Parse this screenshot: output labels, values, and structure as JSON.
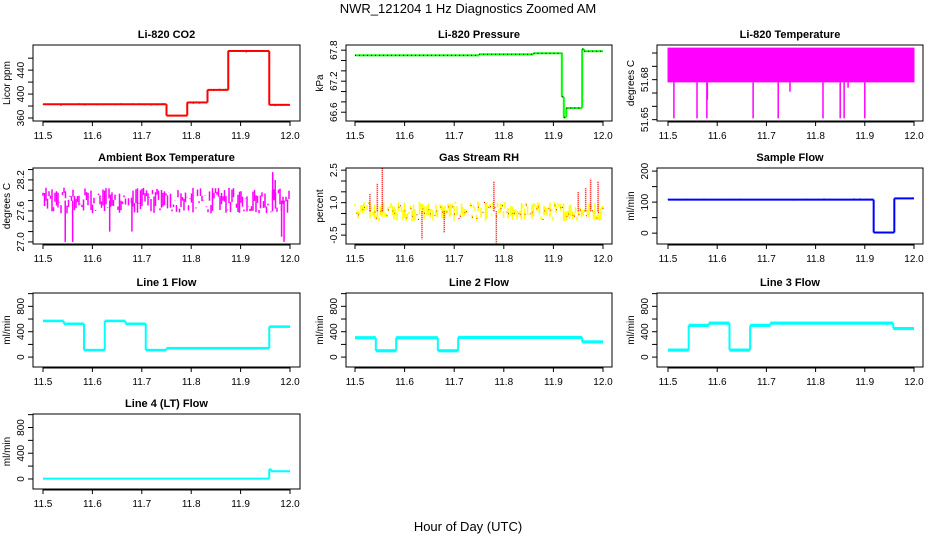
{
  "figure": {
    "title": "NWR_121204  1 Hz Diagnostics Zoomed AM",
    "xlabel": "Hour of Day (UTC)"
  },
  "chart_data": [
    {
      "type": "line",
      "title": "Li-820 CO2",
      "ylabel": "Licor ppm",
      "color": "#ff0000",
      "xlim": [
        11.5,
        12.0
      ],
      "xticks": [
        11.5,
        11.6,
        11.7,
        11.8,
        11.9,
        12.0
      ],
      "ylim": [
        355,
        482
      ],
      "yticks": [
        360,
        380,
        400,
        420,
        440,
        460
      ],
      "ytick_labels": [
        360,
        400,
        440
      ],
      "segments": [
        [
          11.5,
          11.75,
          383
        ],
        [
          11.75,
          11.792,
          364
        ],
        [
          11.792,
          11.833,
          386
        ],
        [
          11.833,
          11.875,
          407
        ],
        [
          11.875,
          11.958,
          472
        ],
        [
          11.958,
          12.0,
          382
        ]
      ],
      "noise": 1.5,
      "spread": 2
    },
    {
      "type": "line",
      "title": "Li-820 Pressure",
      "ylabel": "kPa",
      "color": "#00ff00",
      "marker_color": "#000000",
      "xlim": [
        11.5,
        12.0
      ],
      "xticks": [
        11.5,
        11.6,
        11.7,
        11.8,
        11.9,
        12.0
      ],
      "ylim": [
        66.43,
        67.9
      ],
      "yticks": [
        66.6,
        66.8,
        67.0,
        67.2,
        67.4,
        67.6,
        67.8
      ],
      "ytick_labels": [
        66.6,
        67.2,
        67.8
      ],
      "segments": [
        [
          11.5,
          11.75,
          67.7
        ],
        [
          11.75,
          11.86,
          67.72
        ],
        [
          11.86,
          11.917,
          67.74
        ],
        [
          11.917,
          11.921,
          66.9
        ],
        [
          11.921,
          11.926,
          66.5
        ],
        [
          11.926,
          11.958,
          66.68
        ],
        [
          11.958,
          11.962,
          67.82
        ],
        [
          11.962,
          12.0,
          67.78
        ]
      ],
      "noise": 0.01,
      "spread": 0.02
    },
    {
      "type": "line",
      "title": "Li-820 Temperature",
      "ylabel": "degrees C",
      "color": "#ff00ff",
      "xlim": [
        11.5,
        12.0
      ],
      "xticks": [
        11.5,
        11.6,
        11.7,
        11.8,
        11.9,
        12.0
      ],
      "ylim": [
        51.649,
        51.706
      ],
      "yticks": [
        51.65,
        51.66,
        51.67,
        51.68,
        51.69,
        51.7
      ],
      "ytick_labels": [
        51.65,
        51.68
      ],
      "band": [
        51.678,
        51.704
      ],
      "spikes": [
        [
          11.512,
          51.651
        ],
        [
          11.559,
          51.651
        ],
        [
          11.579,
          51.651
        ],
        [
          11.58,
          51.665
        ],
        [
          11.673,
          51.651
        ],
        [
          11.724,
          51.651
        ],
        [
          11.748,
          51.671
        ],
        [
          11.815,
          51.651
        ],
        [
          11.85,
          51.651
        ],
        [
          11.858,
          51.651
        ],
        [
          11.866,
          51.674
        ],
        [
          11.9,
          51.651
        ]
      ]
    },
    {
      "type": "line",
      "title": "Ambient Box Temperature",
      "ylabel": "degrees C",
      "color": "#ff00ff",
      "xlim": [
        11.5,
        12.0
      ],
      "xticks": [
        11.5,
        11.6,
        11.7,
        11.8,
        11.9,
        12.0
      ],
      "ylim": [
        26.96,
        28.43
      ],
      "yticks": [
        27.0,
        27.2,
        27.4,
        27.6,
        27.8,
        28.0,
        28.2,
        28.4
      ],
      "ytick_labels": [
        27.0,
        27.6,
        28.2
      ],
      "center": 27.8,
      "noise": 0.25,
      "spikes": [
        [
          11.545,
          27.0
        ],
        [
          11.56,
          27.0
        ],
        [
          11.635,
          27.2
        ],
        [
          11.68,
          27.2
        ],
        [
          11.965,
          28.35
        ],
        [
          11.97,
          28.2
        ],
        [
          11.988,
          27.0
        ],
        [
          11.983,
          27.1
        ]
      ]
    },
    {
      "type": "line",
      "title": "Gas Stream RH",
      "ylabel": "percent",
      "color": "#ffff00",
      "marker_color": "#ff0000",
      "xlim": [
        11.5,
        12.0
      ],
      "xticks": [
        11.5,
        11.6,
        11.7,
        11.8,
        11.9,
        12.0
      ],
      "ylim": [
        -0.91,
        2.6
      ],
      "yticks": [
        -0.5,
        0.0,
        0.5,
        1.0,
        1.5,
        2.0,
        2.5
      ],
      "ytick_labels": [
        -0.5,
        1.0,
        2.5
      ],
      "center": 0.6,
      "noise": 0.45,
      "spikes": [
        [
          11.53,
          1.4
        ],
        [
          11.545,
          1.9
        ],
        [
          11.555,
          2.6
        ],
        [
          11.635,
          -0.7
        ],
        [
          11.68,
          -0.4
        ],
        [
          11.785,
          -0.9
        ],
        [
          11.78,
          2.0
        ],
        [
          11.95,
          1.5
        ],
        [
          11.965,
          1.7
        ],
        [
          11.975,
          2.1
        ],
        [
          11.99,
          2.0
        ]
      ]
    },
    {
      "type": "line",
      "title": "Sample Flow",
      "ylabel": "ml/min",
      "color": "#0000ff",
      "xlim": [
        11.5,
        12.0
      ],
      "xticks": [
        11.5,
        11.6,
        11.7,
        11.8,
        11.9,
        12.0
      ],
      "ylim": [
        -35,
        210
      ],
      "yticks": [
        0,
        50,
        100,
        150,
        200
      ],
      "ytick_labels": [
        0,
        100,
        200
      ],
      "segments": [
        [
          11.5,
          11.918,
          108
        ],
        [
          11.918,
          11.96,
          2
        ],
        [
          11.96,
          12.0,
          112
        ]
      ],
      "noise": 2,
      "spread": 4
    },
    {
      "type": "line",
      "title": "Line 1 Flow",
      "ylabel": "ml/min",
      "color": "#00ffff",
      "xlim": [
        11.5,
        12.0
      ],
      "xticks": [
        11.5,
        11.6,
        11.7,
        11.8,
        11.9,
        12.0
      ],
      "ylim": [
        -156,
        1010
      ],
      "yticks": [
        0,
        200,
        400,
        600,
        800,
        1000
      ],
      "ytick_labels": [
        0,
        400,
        800
      ],
      "segments": [
        [
          11.5,
          11.542,
          570
        ],
        [
          11.542,
          11.583,
          525
        ],
        [
          11.583,
          11.625,
          110
        ],
        [
          11.625,
          11.667,
          570
        ],
        [
          11.667,
          11.708,
          525
        ],
        [
          11.708,
          11.75,
          110
        ],
        [
          11.75,
          11.958,
          140
        ],
        [
          11.958,
          12.0,
          480
        ]
      ],
      "noise": 0,
      "spread": 40
    },
    {
      "type": "line",
      "title": "Line 2 Flow",
      "ylabel": "ml/min",
      "color": "#00ffff",
      "xlim": [
        11.5,
        12.0
      ],
      "xticks": [
        11.5,
        11.6,
        11.7,
        11.8,
        11.9,
        12.0
      ],
      "ylim": [
        -156,
        1010
      ],
      "yticks": [
        0,
        200,
        400,
        600,
        800,
        1000
      ],
      "ytick_labels": [
        0,
        400,
        800
      ],
      "segments": [
        [
          11.5,
          11.542,
          305
        ],
        [
          11.542,
          11.583,
          100
        ],
        [
          11.583,
          11.667,
          305
        ],
        [
          11.667,
          11.708,
          100
        ],
        [
          11.708,
          11.958,
          310
        ],
        [
          11.958,
          12.0,
          240
        ]
      ],
      "noise": 0,
      "spread": 50
    },
    {
      "type": "line",
      "title": "Line 3 Flow",
      "ylabel": "ml/min",
      "color": "#00ffff",
      "xlim": [
        11.5,
        12.0
      ],
      "xticks": [
        11.5,
        11.6,
        11.7,
        11.8,
        11.9,
        12.0
      ],
      "ylim": [
        -156,
        1010
      ],
      "yticks": [
        0,
        200,
        400,
        600,
        800,
        1000
      ],
      "ytick_labels": [
        0,
        400,
        800
      ],
      "segments": [
        [
          11.5,
          11.542,
          110
        ],
        [
          11.542,
          11.583,
          500
        ],
        [
          11.583,
          11.625,
          535
        ],
        [
          11.625,
          11.667,
          110
        ],
        [
          11.667,
          11.708,
          500
        ],
        [
          11.708,
          11.958,
          535
        ],
        [
          11.958,
          12.0,
          450
        ]
      ],
      "noise": 0,
      "spread": 50
    },
    {
      "type": "line",
      "title": "Line 4 (LT) Flow",
      "ylabel": "ml/min",
      "color": "#00ffff",
      "xlim": [
        11.5,
        12.0
      ],
      "xticks": [
        11.5,
        11.6,
        11.7,
        11.8,
        11.9,
        12.0
      ],
      "ylim": [
        -156,
        1010
      ],
      "yticks": [
        0,
        200,
        400,
        600,
        800,
        1000
      ],
      "ytick_labels": [
        0,
        400,
        800
      ],
      "segments": [
        [
          11.5,
          11.958,
          5
        ],
        [
          11.958,
          11.962,
          150
        ],
        [
          11.962,
          12.0,
          120
        ]
      ],
      "noise": 0,
      "spread": 25
    }
  ]
}
